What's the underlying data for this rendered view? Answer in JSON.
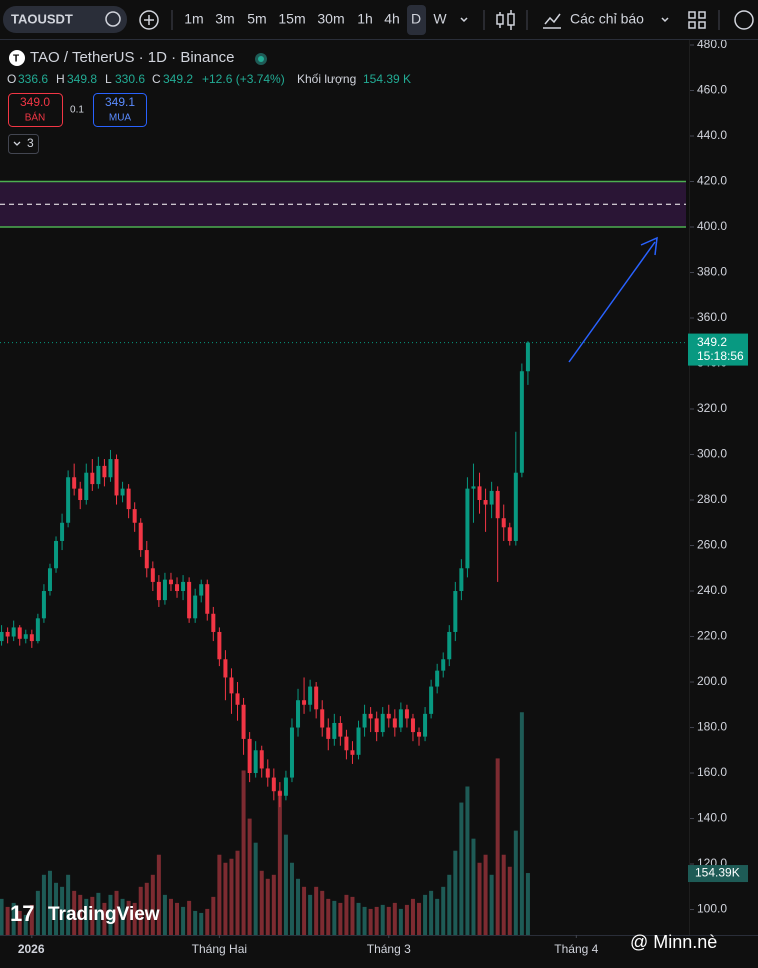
{
  "ui": {
    "symbol": "TAOUSDT",
    "intervals": [
      "1m",
      "3m",
      "5m",
      "15m",
      "30m",
      "1h",
      "4h",
      "D",
      "W"
    ],
    "indicators": "Các chỉ báo",
    "legend": {
      "title": "TAO / TetherUS · 1D · Binance",
      "o": "O",
      "h": "H",
      "l": "L",
      "c": "C",
      "change": "+12.6 (+3.74%)",
      "volume_title": "Khối lượng"
    },
    "trade": {
      "sell_price": "349.0",
      "sell": "BÁN",
      "spread": "0.1",
      "buy_price": "349.1",
      "buy": "MUA"
    },
    "studies": "3",
    "countdown": "15:18:56",
    "brand": "TradingView",
    "watermark": "@ Minn.nè"
  },
  "chart_data": {
    "type": "candlestick",
    "up_color": "#089981",
    "down_color": "#f23645",
    "up_volume_color": "#1e5b56",
    "down_volume_color": "#7d2b31",
    "grid": false,
    "xlim": [
      -0.26,
      113.79
    ],
    "xticks": [
      {
        "value": 5,
        "label": "2026"
      },
      {
        "value": 36,
        "label": "Tháng Hai"
      },
      {
        "value": 64,
        "label": "Tháng 3"
      },
      {
        "value": 95,
        "label": "Tháng 4"
      }
    ],
    "ylim": [
      88.8,
      482.2
    ],
    "yticks": [
      {
        "value": 100,
        "label": "100.0"
      },
      {
        "value": 120,
        "label": "120.0"
      },
      {
        "value": 140,
        "label": "140.0"
      },
      {
        "value": 160,
        "label": "160.0"
      },
      {
        "value": 180,
        "label": "180.0"
      },
      {
        "value": 200,
        "label": "200.0"
      },
      {
        "value": 220,
        "label": "220.0"
      },
      {
        "value": 240,
        "label": "240.0"
      },
      {
        "value": 260,
        "label": "260.0"
      },
      {
        "value": 280,
        "label": "280.0"
      },
      {
        "value": 300,
        "label": "300.0"
      },
      {
        "value": 320,
        "label": "320.0"
      },
      {
        "value": 340,
        "label": "340.0"
      },
      {
        "value": 360,
        "label": "360.0"
      },
      {
        "value": 380,
        "label": "380.0"
      },
      {
        "value": 400,
        "label": "400.0"
      },
      {
        "value": 420,
        "label": "420.0"
      },
      {
        "value": 440,
        "label": "440.0"
      },
      {
        "value": 460,
        "label": "460.0"
      },
      {
        "value": 480,
        "label": "480.0"
      }
    ],
    "vlim": [
      0,
      2230
    ],
    "zone": {
      "low": 400,
      "high": 420,
      "mid": 410,
      "color": "#2a1535",
      "border": "#4caf50"
    },
    "open": [
      218,
      222,
      220,
      224,
      219,
      221,
      218,
      228,
      240,
      250,
      262,
      270,
      290,
      285,
      280,
      292,
      287,
      295,
      290,
      298,
      282,
      285,
      276,
      270,
      258,
      250,
      244,
      236,
      245,
      243,
      240,
      244,
      228,
      238,
      243,
      230,
      222,
      210,
      202,
      195,
      190,
      175,
      160,
      170,
      162,
      158,
      152,
      150,
      158,
      180,
      192,
      190,
      198,
      188,
      180,
      175,
      182,
      176,
      170,
      168,
      180,
      186,
      184,
      178,
      186,
      184,
      180,
      188,
      184,
      178,
      176,
      186,
      198,
      205,
      210,
      222,
      240,
      250,
      285,
      286,
      280,
      278,
      284,
      272,
      268,
      262,
      292,
      336.6
    ],
    "high": [
      225,
      224,
      227,
      225,
      223,
      223,
      230,
      243,
      252,
      264,
      274,
      293,
      296,
      288,
      296,
      298,
      299,
      298,
      302,
      300,
      288,
      287,
      279,
      272,
      262,
      253,
      247,
      248,
      248,
      246,
      247,
      246,
      241,
      245,
      245,
      233,
      224,
      214,
      206,
      200,
      193,
      178,
      174,
      172,
      166,
      162,
      156,
      161,
      184,
      197,
      202,
      201,
      200,
      192,
      184,
      186,
      185,
      179,
      174,
      183,
      190,
      189,
      187,
      189,
      190,
      188,
      191,
      190,
      186,
      180,
      189,
      201,
      208,
      213,
      225,
      244,
      254,
      290,
      296,
      292,
      285,
      288,
      286,
      278,
      270,
      310,
      340,
      349.8
    ],
    "low": [
      216,
      217,
      218,
      216,
      217,
      215,
      217,
      226,
      238,
      248,
      258,
      268,
      282,
      276,
      278,
      284,
      285,
      286,
      288,
      278,
      279,
      272,
      266,
      255,
      246,
      240,
      233,
      234,
      240,
      237,
      236,
      226,
      226,
      235,
      227,
      218,
      207,
      192,
      186,
      183,
      168,
      156,
      158,
      158,
      154,
      148,
      145,
      148,
      156,
      176,
      186,
      187,
      184,
      176,
      170,
      172,
      172,
      166,
      164,
      166,
      176,
      178,
      174,
      176,
      180,
      176,
      178,
      180,
      174,
      172,
      174,
      184,
      195,
      202,
      207,
      218,
      236,
      246,
      270,
      274,
      266,
      272,
      244,
      262,
      260,
      260,
      290,
      330.6
    ],
    "close": [
      222,
      220,
      224,
      219,
      221,
      218,
      228,
      240,
      250,
      262,
      270,
      290,
      285,
      280,
      292,
      287,
      295,
      290,
      298,
      282,
      285,
      276,
      270,
      258,
      250,
      244,
      236,
      245,
      243,
      240,
      244,
      228,
      238,
      243,
      230,
      222,
      210,
      202,
      195,
      190,
      175,
      160,
      170,
      162,
      158,
      152,
      150,
      158,
      180,
      192,
      190,
      198,
      188,
      180,
      175,
      182,
      176,
      170,
      168,
      180,
      186,
      184,
      178,
      186,
      184,
      180,
      188,
      184,
      178,
      176,
      186,
      198,
      205,
      210,
      222,
      240,
      250,
      285,
      286,
      280,
      278,
      284,
      272,
      268,
      262,
      292,
      336.6,
      349.2
    ],
    "volume": [
      90,
      70,
      80,
      60,
      50,
      75,
      110,
      150,
      160,
      130,
      120,
      150,
      110,
      100,
      90,
      95,
      105,
      80,
      100,
      110,
      90,
      85,
      80,
      120,
      130,
      150,
      200,
      100,
      90,
      80,
      70,
      85,
      60,
      55,
      65,
      95,
      200,
      180,
      190,
      210,
      410,
      290,
      230,
      160,
      140,
      150,
      360,
      250,
      180,
      140,
      120,
      100,
      120,
      110,
      90,
      85,
      80,
      100,
      95,
      80,
      70,
      65,
      70,
      75,
      70,
      80,
      65,
      75,
      90,
      80,
      100,
      110,
      90,
      120,
      150,
      210,
      330,
      370,
      240,
      180,
      200,
      150,
      440,
      200,
      170,
      260,
      555,
      154.39
    ],
    "volume_label": "154.39 K",
    "volume_axis_label": "154.39K"
  }
}
